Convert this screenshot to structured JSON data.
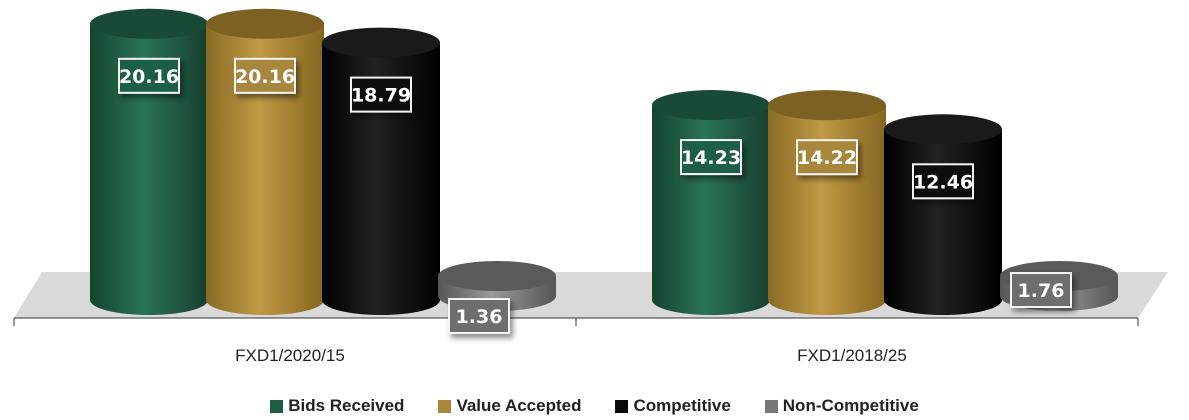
{
  "chart_data": {
    "type": "bar",
    "categories": [
      "FXD1/2020/15",
      "FXD1/2018/25"
    ],
    "series": [
      {
        "name": "Bids Received",
        "values": [
          20.16,
          14.23
        ],
        "color": "#1f5e44"
      },
      {
        "name": "Value Accepted",
        "values": [
          20.16,
          14.22
        ],
        "color": "#a8863a"
      },
      {
        "name": "Competitive",
        "values": [
          18.79,
          12.46
        ],
        "color": "#0a0a0a"
      },
      {
        "name": "Non-Competitive",
        "values": [
          1.36,
          1.76
        ],
        "color": "#777777"
      }
    ],
    "data_labels": [
      [
        "20.16",
        "20.16",
        "18.79",
        "1.36"
      ],
      [
        "14.23",
        "14.22",
        "12.46",
        "1.76"
      ]
    ],
    "legend_position": "bottom",
    "grid": false,
    "style": "3d-cylinder"
  }
}
